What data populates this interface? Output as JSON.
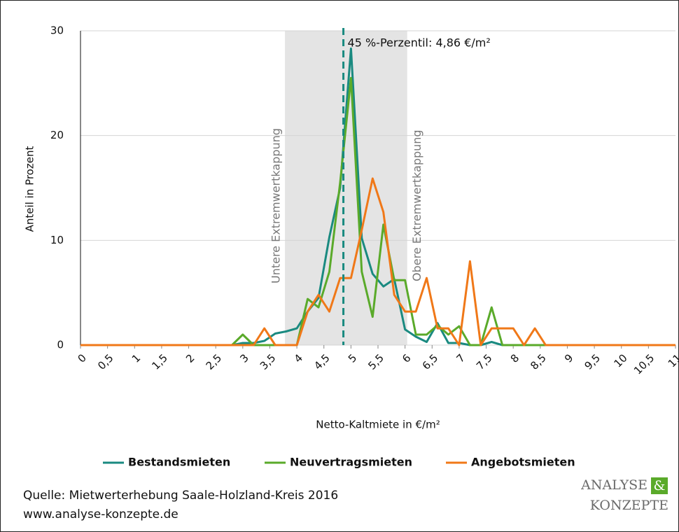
{
  "chart_data": {
    "type": "line",
    "xlabel": "Netto-Kaltmiete in €/m²",
    "ylabel": "Anteil in Prozent",
    "x": [
      0,
      0.2,
      0.4,
      0.6,
      0.8,
      1,
      1.2,
      1.4,
      1.6,
      1.8,
      2,
      2.2,
      2.4,
      2.6,
      2.8,
      3,
      3.2,
      3.4,
      3.6,
      3.8,
      4,
      4.2,
      4.4,
      4.6,
      4.8,
      5,
      5.2,
      5.4,
      5.6,
      5.8,
      6,
      6.2,
      6.4,
      6.6,
      6.8,
      7,
      7.2,
      7.4,
      7.6,
      7.8,
      8,
      8.2,
      8.4,
      8.6,
      8.8,
      9,
      9.2,
      9.4,
      9.6,
      9.8,
      10,
      10.2,
      10.4,
      10.6,
      10.8,
      11
    ],
    "series": [
      {
        "name": "Bestandsmieten",
        "color": "#1a8a80",
        "values": [
          0,
          0,
          0,
          0,
          0,
          0,
          0,
          0,
          0,
          0,
          0,
          0,
          0,
          0,
          0,
          0.2,
          0.2,
          0.4,
          1.1,
          1.3,
          1.6,
          3.2,
          4.5,
          10.3,
          15,
          28.3,
          10.2,
          6.8,
          5.6,
          6.3,
          1.5,
          0.8,
          0.3,
          2.1,
          0.2,
          0.2,
          0,
          0,
          0.3,
          0,
          0,
          0,
          0,
          0,
          0,
          0,
          0,
          0,
          0,
          0,
          0,
          0,
          0,
          0,
          0,
          0
        ]
      },
      {
        "name": "Neuvertragsmieten",
        "color": "#5aaa2a",
        "values": [
          0,
          0,
          0,
          0,
          0,
          0,
          0,
          0,
          0,
          0,
          0,
          0,
          0,
          0,
          0,
          1.0,
          0,
          0,
          0,
          0,
          0,
          4.4,
          3.6,
          7.0,
          15.5,
          25.5,
          7.0,
          2.7,
          11.5,
          6.2,
          6.2,
          1.0,
          1.0,
          1.9,
          1.0,
          1.8,
          0,
          0,
          3.6,
          0,
          0,
          0,
          0,
          0,
          0,
          0,
          0,
          0,
          0,
          0,
          0,
          0,
          0,
          0,
          0,
          0
        ]
      },
      {
        "name": "Angebotsmieten",
        "color": "#f07818",
        "values": [
          0,
          0,
          0,
          0,
          0,
          0,
          0,
          0,
          0,
          0,
          0,
          0,
          0,
          0,
          0,
          0,
          0,
          1.6,
          0,
          0,
          0,
          3.2,
          4.8,
          3.2,
          6.4,
          6.4,
          11,
          15.9,
          12.7,
          4.8,
          3.2,
          3.2,
          6.4,
          1.6,
          1.6,
          0,
          8.0,
          0,
          1.6,
          1.6,
          1.6,
          0,
          1.6,
          0,
          0,
          0,
          0,
          0,
          0,
          0,
          0,
          0,
          0,
          0,
          0,
          0
        ]
      }
    ],
    "xlim": [
      0,
      11
    ],
    "ylim": [
      0,
      30
    ],
    "yticks": [
      0,
      10,
      20,
      30
    ],
    "xticks": [
      0,
      {
        "value": 0.5,
        "label": "0,5"
      },
      1,
      {
        "value": 1.5,
        "label": "1,5"
      },
      2,
      {
        "value": 2.5,
        "label": "2,5"
      },
      3,
      {
        "value": 3.5,
        "label": "3,5"
      },
      4,
      {
        "value": 4.5,
        "label": "4,5"
      },
      5,
      {
        "value": 5.5,
        "label": "5,5"
      },
      6,
      {
        "value": 6.5,
        "label": "6,5"
      },
      7,
      {
        "value": 7.5,
        "label": "7,5"
      },
      8,
      {
        "value": 8.5,
        "label": "8,5"
      },
      9,
      {
        "value": 9.5,
        "label": "9,5"
      },
      10,
      {
        "value": 10.5,
        "label": "10,5"
      },
      11
    ],
    "grid": true,
    "legend": "bottom",
    "band": {
      "from": 3.78,
      "to": 6.04,
      "color": "#e4e4e4",
      "label_lower": "Untere Extremwertkappung",
      "label_upper": "Obere Extremwertkappung"
    },
    "percentile": {
      "value": 4.86,
      "label": "45 %-Perzentil: 4,86 €/m²",
      "color": "#1a8a80"
    },
    "source": [
      "Quelle: Mietwerterhebung Saale-Holzland-Kreis 2016",
      "www.analyse-konzepte.de"
    ],
    "logo": [
      "ANALYSE",
      "&",
      "KONZEPTE"
    ]
  }
}
